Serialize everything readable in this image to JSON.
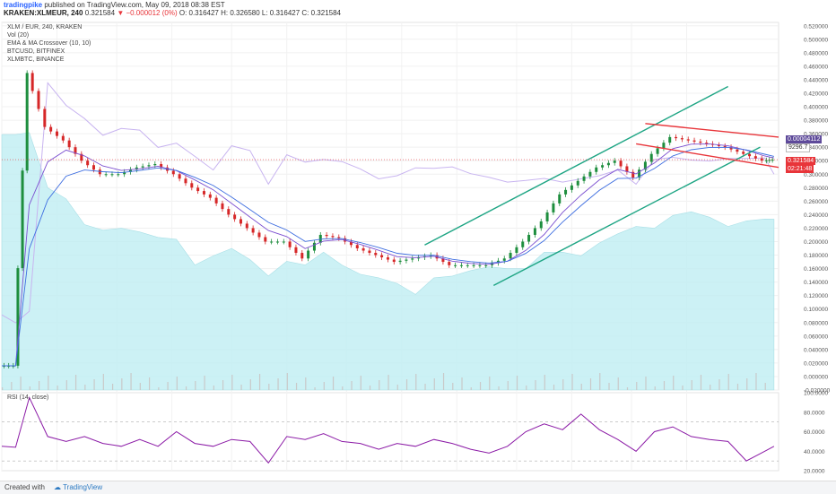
{
  "header": {
    "author": "tradingpike",
    "published": "published on TradingView.com, May 09, 2018 08:38 EST",
    "symbol_line": "KRAKEN:XLMEUR, 240",
    "last": "0.321584",
    "change": "▼ −0.000012 (0%)",
    "ohlc": "O: 0.316427  H: 0.326580  L: 0.316427  C: 0.321584"
  },
  "legend": {
    "main": "XLM / EUR, 240, KRAKEN",
    "vol": "Vol (20)",
    "ema": "EMA & MA Crossover (10, 10)",
    "btc": "BTCUSD, BITFINEX",
    "xlmbtc": "XLMBTC, BINANCE",
    "rsi": "RSI (14, close)"
  },
  "price_tags": {
    "xlmbtc": "0.00004112",
    "btc": "9296.7",
    "price": "0.321584",
    "timer": "02:21:48"
  },
  "footer": {
    "created": "Created with",
    "brand": "TradingView"
  },
  "colors": {
    "up": "#1e8e3e",
    "down": "#d62728",
    "btc_area": "#bfeef2",
    "xlmbtc_line": "#c8b4f0",
    "ema": "#7b4fd0",
    "ma": "#3d6de0",
    "rsi": "#8b1aa6",
    "channel_green": "#1ea584",
    "channel_red": "#e8353a"
  },
  "chart_data": [
    {
      "type": "line",
      "title": "XLM / EUR, 240, KRAKEN",
      "x_ticks": [
        "2018",
        "22",
        "Mar",
        "6",
        "12",
        "19",
        "26",
        "Apr",
        "9",
        "16",
        "23",
        "May",
        "7"
      ],
      "y_ticks": [
        "0.520000",
        "0.500000",
        "0.480000",
        "0.460000",
        "0.440000",
        "0.420000",
        "0.400000",
        "0.380000",
        "0.360000",
        "0.340000",
        "0.320000",
        "0.300000",
        "0.280000",
        "0.260000",
        "0.240000",
        "0.220000",
        "0.200000",
        "0.180000",
        "0.160000",
        "0.140000",
        "0.120000",
        "0.100000",
        "0.080000",
        "0.060000",
        "0.040000",
        "0.020000",
        "0.000000",
        "-0.020000"
      ],
      "ylim": [
        -0.02,
        0.525
      ],
      "series": [
        {
          "name": "XLM / EUR",
          "x": [
            0,
            3,
            6,
            10,
            14,
            18,
            22,
            26,
            30,
            34,
            38,
            42,
            46,
            50,
            54,
            58,
            62,
            66,
            70,
            74,
            78,
            82,
            86,
            90,
            94,
            98,
            102,
            106,
            110,
            114,
            118,
            122,
            126,
            130,
            134,
            138,
            142,
            146,
            150,
            154,
            158,
            162,
            166,
            168
          ],
          "values": [
            0.016,
            0.016,
            0.45,
            0.37,
            0.35,
            0.32,
            0.3,
            0.3,
            0.31,
            0.315,
            0.3,
            0.28,
            0.265,
            0.24,
            0.22,
            0.2,
            0.2,
            0.175,
            0.21,
            0.205,
            0.19,
            0.18,
            0.17,
            0.175,
            0.18,
            0.165,
            0.165,
            0.165,
            0.175,
            0.2,
            0.23,
            0.27,
            0.29,
            0.31,
            0.32,
            0.295,
            0.33,
            0.355,
            0.35,
            0.345,
            0.34,
            0.33,
            0.32,
            0.321584
          ]
        },
        {
          "name": "BTCUSD, BITFINEX",
          "x": [
            0,
            3,
            6,
            10,
            14,
            18,
            22,
            26,
            30,
            34,
            38,
            42,
            46,
            50,
            54,
            58,
            62,
            66,
            70,
            74,
            78,
            82,
            86,
            90,
            94,
            98,
            102,
            106,
            110,
            114,
            118,
            122,
            126,
            130,
            134,
            138,
            142,
            146,
            150,
            154,
            158,
            162,
            166,
            168
          ],
          "values": [
            13900,
            13900,
            14000,
            11000,
            10400,
            9000,
            8700,
            8800,
            8600,
            8300,
            8200,
            6800,
            7300,
            7700,
            7100,
            6200,
            7000,
            6800,
            7500,
            6800,
            6300,
            6100,
            5800,
            5200,
            6100,
            6200,
            6500,
            6700,
            6600,
            6600,
            7500,
            7500,
            7300,
            8000,
            8500,
            8900,
            8800,
            9500,
            9700,
            9400,
            8900,
            9200,
            9300,
            9296.7
          ]
        },
        {
          "name": "XLMBTC, BINANCE",
          "x": [
            0,
            3,
            6,
            10,
            14,
            18,
            22,
            26,
            30,
            34,
            38,
            42,
            46,
            50,
            54,
            58,
            62,
            66,
            70,
            74,
            78,
            82,
            86,
            90,
            94,
            98,
            102,
            106,
            110,
            114,
            118,
            122,
            126,
            130,
            134,
            138,
            142,
            146,
            150,
            154,
            158,
            162,
            166,
            168
          ],
          "values": [
            1.43e-05,
            1.28e-05,
            1.5e-05,
            5.85e-05,
            5.42e-05,
            5.17e-05,
            4.85e-05,
            4.98e-05,
            4.95e-05,
            4.62e-05,
            4.7e-05,
            4.45e-05,
            4.19e-05,
            4.65e-05,
            4.56e-05,
            3.92e-05,
            4.48e-05,
            4.34e-05,
            4.39e-05,
            4.35e-05,
            4.21e-05,
            4.02e-05,
            4.08e-05,
            4.23e-05,
            4.22e-05,
            4.25e-05,
            4.12e-05,
            4.05e-05,
            3.96e-05,
            3.99e-05,
            4.03e-05,
            3.96e-05,
            4.02e-05,
            4.08e-05,
            4.19e-05,
            3.92e-05,
            4.39e-05,
            4.43e-05,
            4.38e-05,
            4.36e-05,
            4.41e-05,
            4.41e-05,
            4.42e-05,
            4.112e-05
          ]
        }
      ],
      "trendlines": [
        {
          "color": "green",
          "x": [
            92,
            158
          ],
          "values": [
            0.195,
            0.43
          ]
        },
        {
          "color": "green",
          "x": [
            107,
            165
          ],
          "values": [
            0.135,
            0.34
          ]
        },
        {
          "color": "red",
          "x": [
            140,
            169
          ],
          "values": [
            0.375,
            0.355
          ]
        },
        {
          "color": "red",
          "x": [
            138,
            169
          ],
          "values": [
            0.345,
            0.31
          ]
        }
      ],
      "horizontal_line": 0.321584,
      "grid": true,
      "axis_side": "right"
    },
    {
      "type": "line",
      "title": "RSI (14, close)",
      "y_ticks": [
        "100.0000",
        "80.0000",
        "60.0000",
        "40.0000",
        "20.0000"
      ],
      "ylim": [
        20,
        100
      ],
      "bands": [
        70,
        30
      ],
      "series": [
        {
          "name": "RSI (14, close)",
          "x": [
            0,
            3,
            6,
            8,
            10,
            14,
            18,
            22,
            26,
            30,
            34,
            38,
            42,
            46,
            50,
            54,
            58,
            62,
            66,
            70,
            74,
            78,
            82,
            86,
            90,
            94,
            98,
            102,
            106,
            110,
            114,
            118,
            122,
            126,
            130,
            134,
            138,
            142,
            146,
            150,
            154,
            158,
            162,
            166,
            168
          ],
          "values": [
            45,
            44,
            95,
            75,
            55,
            50,
            55,
            48,
            45,
            52,
            45,
            60,
            48,
            45,
            52,
            50,
            28,
            55,
            52,
            58,
            50,
            48,
            42,
            48,
            45,
            52,
            48,
            42,
            38,
            45,
            60,
            68,
            62,
            78,
            62,
            52,
            40,
            60,
            65,
            55,
            52,
            50,
            30,
            40,
            45
          ]
        }
      ]
    }
  ]
}
